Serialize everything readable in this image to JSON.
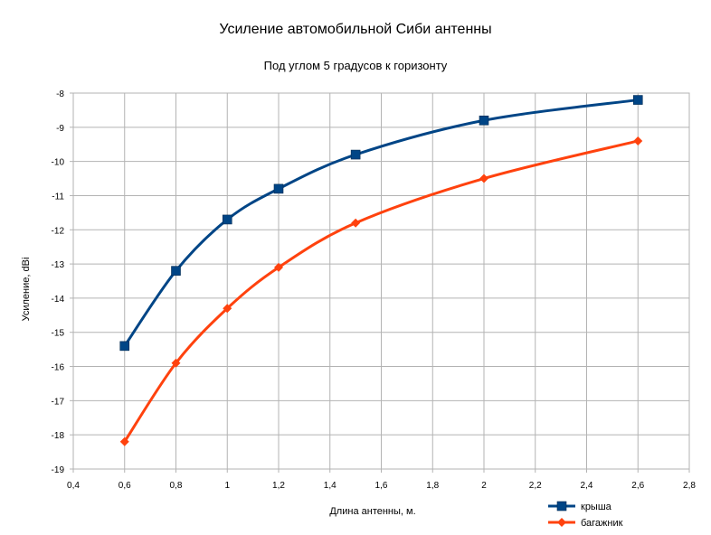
{
  "chart_data": {
    "type": "line",
    "title": "Усиление автомобильной Сиби антенны",
    "subtitle": "Под углом 5 градусов к горизонту",
    "xlabel": "Длина антенны, м.",
    "ylabel": "Усиление, dBi",
    "xlim": [
      0.4,
      2.8
    ],
    "ylim": [
      -19,
      -8
    ],
    "x_ticks": [
      "0,4",
      "0,6",
      "0,8",
      "1",
      "1,2",
      "1,4",
      "1,6",
      "1,8",
      "2",
      "2,2",
      "2,4",
      "2,6",
      "2,8"
    ],
    "y_ticks": [
      "-8",
      "-9",
      "-10",
      "-11",
      "-12",
      "-13",
      "-14",
      "-15",
      "-16",
      "-17",
      "-18",
      "-19"
    ],
    "grid": true,
    "legend_position": "bottom-right",
    "series": [
      {
        "name": "крыша",
        "color": "#004586",
        "marker": "square",
        "x": [
          0.6,
          0.8,
          1.0,
          1.2,
          1.5,
          2.0,
          2.6
        ],
        "y": [
          -15.4,
          -13.2,
          -11.7,
          -10.8,
          -9.8,
          -8.8,
          -8.2
        ]
      },
      {
        "name": "багажник",
        "color": "#ff420e",
        "marker": "diamond",
        "x": [
          0.6,
          0.8,
          1.0,
          1.2,
          1.5,
          2.0,
          2.6
        ],
        "y": [
          -18.2,
          -15.9,
          -14.3,
          -13.1,
          -11.8,
          -10.5,
          -9.4
        ]
      }
    ]
  }
}
